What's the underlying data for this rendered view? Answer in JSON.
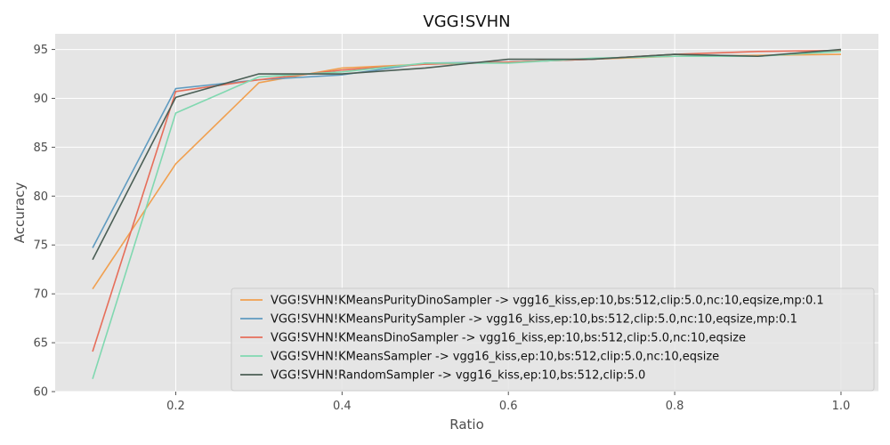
{
  "chart_data": {
    "type": "line",
    "title": "VGG!SVHN",
    "xlabel": "Ratio",
    "ylabel": "Accuracy",
    "xlim": [
      0.055,
      1.045
    ],
    "ylim": [
      60,
      96.6
    ],
    "xticks": [
      0.2,
      0.4,
      0.6,
      0.8,
      1.0
    ],
    "xtick_labels": [
      "0.2",
      "0.4",
      "0.6",
      "0.8",
      "1.0"
    ],
    "yticks": [
      60,
      65,
      70,
      75,
      80,
      85,
      90,
      95
    ],
    "ytick_labels": [
      "60",
      "65",
      "70",
      "75",
      "80",
      "85",
      "90",
      "95"
    ],
    "grid": true,
    "legend_position": "bottom-right",
    "x": [
      0.1,
      0.2,
      0.3,
      0.4,
      0.5,
      0.6,
      0.7,
      0.8,
      0.9,
      1.0
    ],
    "series": [
      {
        "name": "VGG!SVHN!KMeansPurityDinoSampler ->  vgg16_kiss,ep:10,bs:512,clip:5.0,nc:10,eqsize,mp:0.1",
        "color": "#f0a050",
        "values": [
          70.5,
          83.3,
          91.6,
          93.1,
          93.5,
          93.7,
          94.0,
          94.3,
          94.4,
          94.5
        ]
      },
      {
        "name": "VGG!SVHN!KMeansPuritySampler ->  vgg16_kiss,ep:10,bs:512,clip:5.0,nc:10,eqsize,mp:0.1",
        "color": "#5f9bc0",
        "values": [
          74.7,
          91.0,
          91.9,
          92.4,
          93.6,
          93.7,
          94.0,
          94.5,
          94.3,
          94.9
        ]
      },
      {
        "name": "VGG!SVHN!KMeansDinoSampler ->  vgg16_kiss,ep:10,bs:512,clip:5.0,nc:10,eqsize",
        "color": "#e66e5a",
        "values": [
          64.1,
          90.7,
          91.9,
          92.9,
          93.5,
          93.7,
          94.0,
          94.5,
          94.8,
          94.9
        ]
      },
      {
        "name": "VGG!SVHN!KMeansSampler ->  vgg16_kiss,ep:10,bs:512,clip:5.0,nc:10,eqsize",
        "color": "#80d8b0",
        "values": [
          61.3,
          88.5,
          92.2,
          92.7,
          93.6,
          93.6,
          94.1,
          94.3,
          94.3,
          94.8
        ]
      },
      {
        "name": "VGG!SVHN!RandomSampler ->  vgg16_kiss,ep:10,bs:512,clip:5.0",
        "color": "#4a5e55",
        "values": [
          73.5,
          90.1,
          92.5,
          92.5,
          93.1,
          94.0,
          94.0,
          94.5,
          94.3,
          95.0
        ]
      }
    ]
  }
}
